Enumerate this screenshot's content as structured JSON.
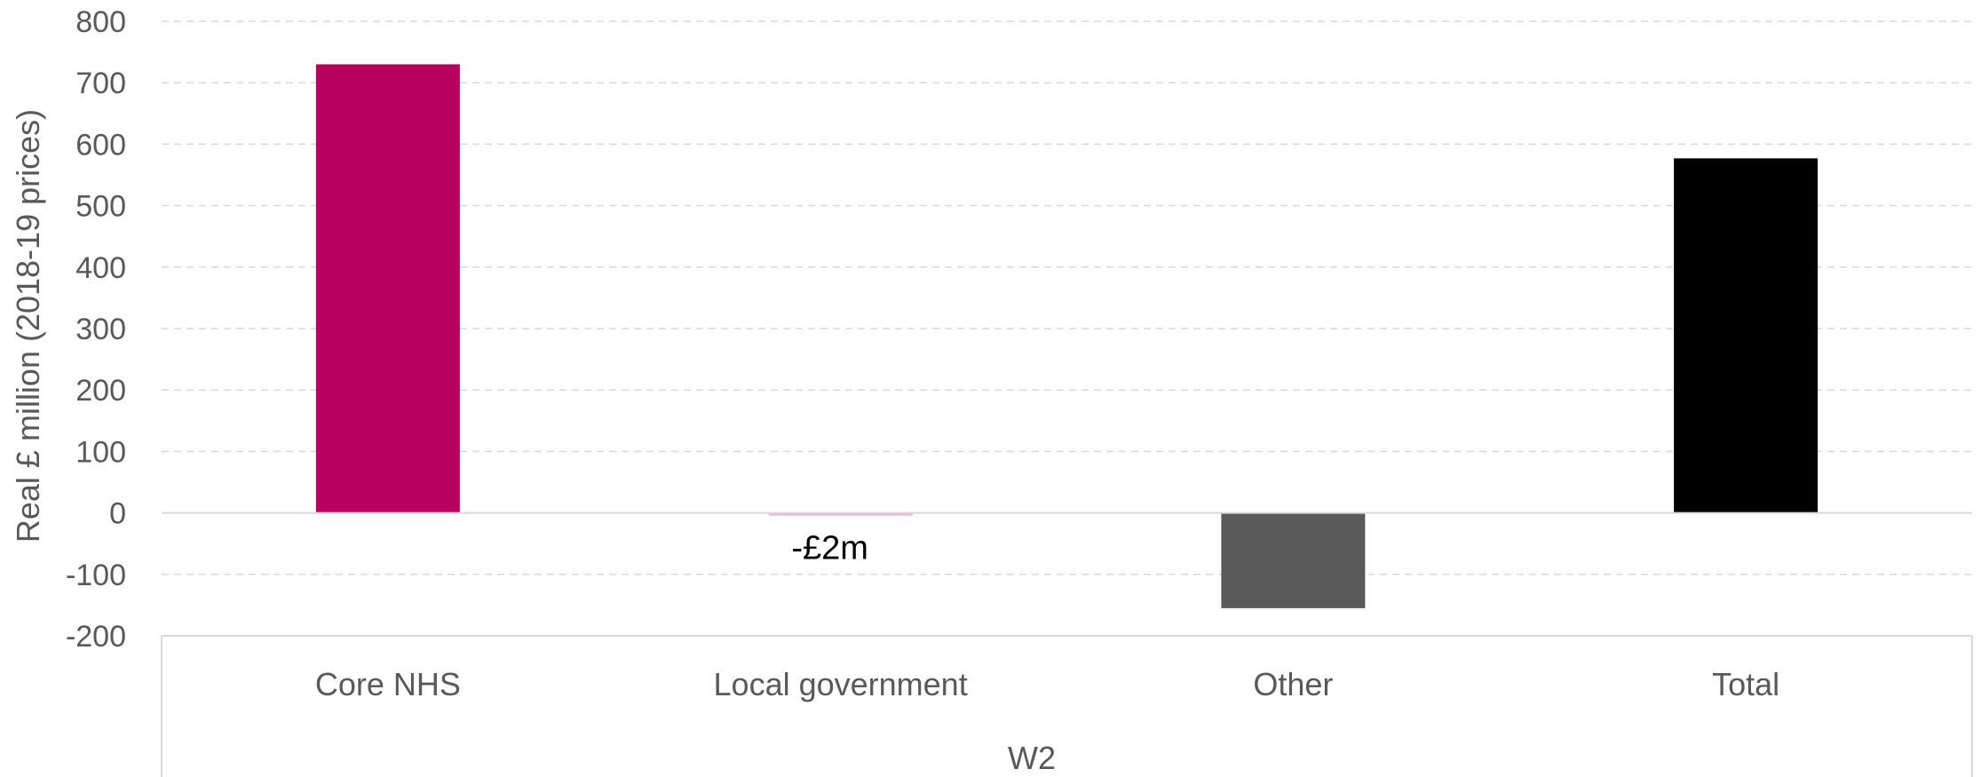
{
  "chart_data": {
    "type": "bar",
    "categories": [
      "Core NHS",
      "Local government",
      "Other",
      "Total"
    ],
    "values": [
      730,
      -2,
      -155,
      577
    ],
    "colors": [
      "#b8005e",
      "#f0b3cf",
      "#595959",
      "#000000"
    ],
    "data_labels": [
      "",
      "-£2m",
      "",
      ""
    ],
    "title": "",
    "xlabel": "W2",
    "ylabel": "Real £ million (2018-19 prices)",
    "ylim": [
      -200,
      800
    ],
    "yticks": [
      800,
      700,
      600,
      500,
      400,
      300,
      200,
      100,
      0,
      -100,
      -200
    ],
    "grid": true,
    "legend": "none"
  }
}
